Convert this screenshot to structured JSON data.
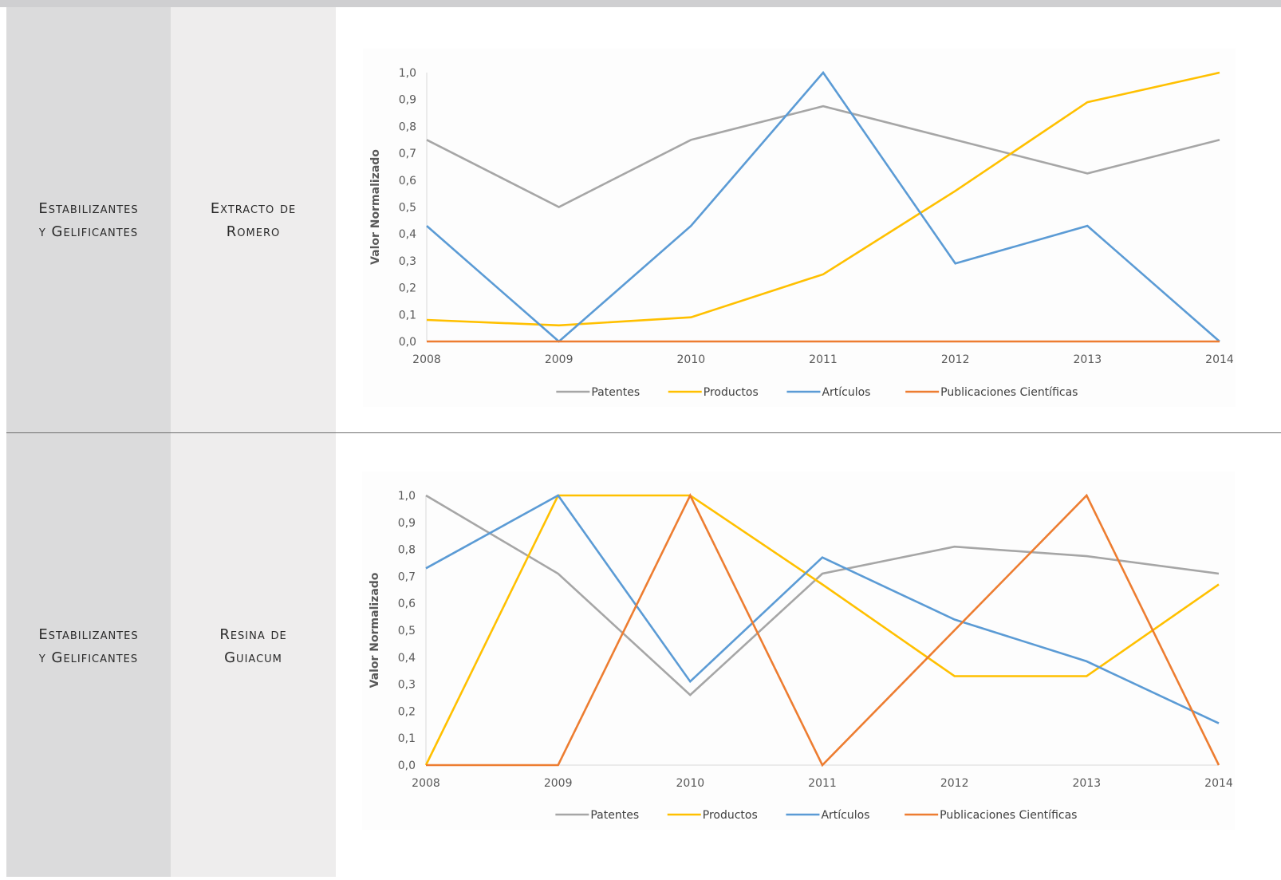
{
  "rows": [
    {
      "category": [
        "Estabilizantes",
        "y Gelificantes"
      ],
      "subcategory": [
        "Extracto de",
        "Romero"
      ]
    },
    {
      "category": [
        "Estabilizantes",
        "y Gelificantes"
      ],
      "subcategory": [
        "Resina de",
        "Guiacum"
      ]
    }
  ],
  "colors": {
    "patentes": "#a6a6a6",
    "productos": "#ffc000",
    "articulos": "#5b9bd5",
    "publicaciones": "#ed7d31"
  },
  "chart_data": [
    {
      "type": "line",
      "x": [
        "2008",
        "2009",
        "2010",
        "2011",
        "2012",
        "2013",
        "2014"
      ],
      "ylabel": "Valor Normalizado",
      "ylim": [
        0,
        1
      ],
      "yticks": [
        "0,0",
        "0,1",
        "0,2",
        "0,3",
        "0,4",
        "0,5",
        "0,6",
        "0,7",
        "0,8",
        "0,9",
        "1,0"
      ],
      "grid": false,
      "legend": "bottom",
      "series": [
        {
          "name": "Patentes",
          "color": "#a6a6a6",
          "values": [
            0.75,
            0.5,
            0.75,
            0.875,
            0.75,
            0.625,
            0.75
          ]
        },
        {
          "name": "Productos",
          "color": "#ffc000",
          "values": [
            0.08,
            0.06,
            0.09,
            0.25,
            0.56,
            0.89,
            1.0
          ]
        },
        {
          "name": "Artículos",
          "color": "#5b9bd5",
          "values": [
            0.43,
            0.0,
            0.43,
            1.0,
            0.29,
            0.43,
            0.0
          ]
        },
        {
          "name": "Publicaciones Científicas",
          "color": "#ed7d31",
          "values": [
            0,
            0,
            0,
            0,
            0,
            0,
            0
          ]
        }
      ]
    },
    {
      "type": "line",
      "x": [
        "2008",
        "2009",
        "2010",
        "2011",
        "2012",
        "2013",
        "2014"
      ],
      "ylabel": "Valor Normalizado",
      "ylim": [
        0,
        1
      ],
      "yticks": [
        "0,0",
        "0,1",
        "0,2",
        "0,3",
        "0,4",
        "0,5",
        "0,6",
        "0,7",
        "0,8",
        "0,9",
        "1,0"
      ],
      "grid": false,
      "legend": "bottom",
      "series": [
        {
          "name": "Patentes",
          "color": "#a6a6a6",
          "values": [
            1.0,
            0.71,
            0.26,
            0.71,
            0.81,
            0.775,
            0.71
          ]
        },
        {
          "name": "Productos",
          "color": "#ffc000",
          "values": [
            0.0,
            1.0,
            1.0,
            0.67,
            0.33,
            0.33,
            0.67
          ]
        },
        {
          "name": "Artículos",
          "color": "#5b9bd5",
          "values": [
            0.73,
            1.0,
            0.31,
            0.77,
            0.54,
            0.385,
            0.155
          ]
        },
        {
          "name": "Publicaciones Científicas",
          "color": "#ed7d31",
          "values": [
            0.0,
            0.0,
            1.0,
            0.0,
            0.5,
            1.0,
            0.0
          ]
        }
      ]
    }
  ]
}
